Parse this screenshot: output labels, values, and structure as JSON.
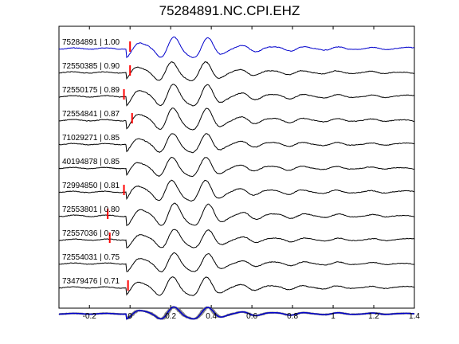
{
  "chart_data": {
    "type": "line",
    "title": "75284891.NC.CPI.EHZ",
    "xlabel": "",
    "ylabel": "",
    "xlim": [
      -0.35,
      1.4
    ],
    "xticks": [
      -0.2,
      0,
      0.2,
      0.4,
      0.6,
      0.8,
      1,
      1.2,
      1.4
    ],
    "xtick_labels": [
      "-0.2",
      "0",
      "0.2",
      "0.4",
      "0.6",
      "0.8",
      "1",
      "1.2",
      "1.4"
    ],
    "grid": false,
    "legend": "none",
    "colors": {
      "reference": "#0000cc",
      "trace": "#000000",
      "pick": "#ff0000",
      "overlay": "#808080"
    },
    "series": [
      {
        "label": "75284891 | 1.00",
        "pick": 0.0,
        "reference": true
      },
      {
        "label": "72550385 | 0.90",
        "pick": 0.0
      },
      {
        "label": "72550175 | 0.89",
        "pick": -0.03
      },
      {
        "label": "72554841 | 0.87",
        "pick": 0.01
      },
      {
        "label": "71029271 | 0.85",
        "pick": null
      },
      {
        "label": "40194878 | 0.85",
        "pick": null
      },
      {
        "label": "72994850 | 0.81",
        "pick": -0.03
      },
      {
        "label": "72553801 | 0.80",
        "pick": -0.11
      },
      {
        "label": "72557036 | 0.79",
        "pick": -0.1
      },
      {
        "label": "72554031 | 0.75",
        "pick": null
      },
      {
        "label": "73479476 | 0.71",
        "pick": -0.01
      }
    ],
    "stack": {
      "label": "",
      "description_shown": false
    }
  }
}
